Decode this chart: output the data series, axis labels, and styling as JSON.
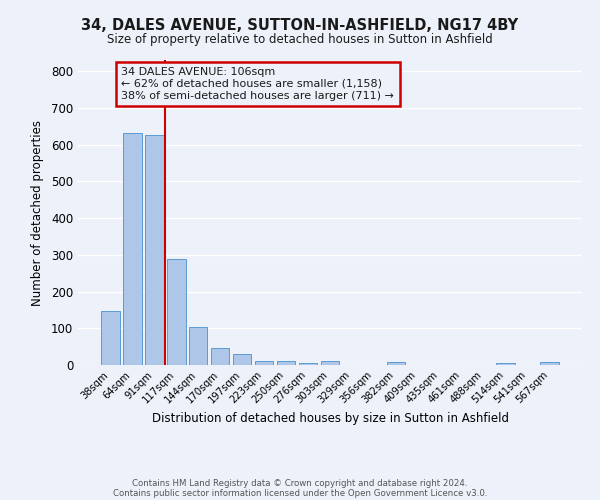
{
  "title": "34, DALES AVENUE, SUTTON-IN-ASHFIELD, NG17 4BY",
  "subtitle": "Size of property relative to detached houses in Sutton in Ashfield",
  "xlabel": "Distribution of detached houses by size in Sutton in Ashfield",
  "ylabel": "Number of detached properties",
  "categories": [
    "38sqm",
    "64sqm",
    "91sqm",
    "117sqm",
    "144sqm",
    "170sqm",
    "197sqm",
    "223sqm",
    "250sqm",
    "276sqm",
    "303sqm",
    "329sqm",
    "356sqm",
    "382sqm",
    "409sqm",
    "435sqm",
    "461sqm",
    "488sqm",
    "514sqm",
    "541sqm",
    "567sqm"
  ],
  "values": [
    148,
    632,
    627,
    289,
    103,
    47,
    30,
    11,
    10,
    6,
    10,
    0,
    0,
    8,
    0,
    0,
    0,
    0,
    5,
    0,
    8
  ],
  "bar_color": "#aec6e8",
  "bar_edge_color": "#5b9bd5",
  "annotation_title": "34 DALES AVENUE: 106sqm",
  "annotation_line1": "← 62% of detached houses are smaller (1,158)",
  "annotation_line2": "38% of semi-detached houses are larger (711) →",
  "annotation_box_color": "#cc0000",
  "annotation_text_color": "#1a1a1a",
  "ylim": [
    0,
    830
  ],
  "yticks": [
    0,
    100,
    200,
    300,
    400,
    500,
    600,
    700,
    800
  ],
  "background_color": "#edf2fa",
  "grid_color": "#ffffff",
  "footer_line1": "Contains HM Land Registry data © Crown copyright and database right 2024.",
  "footer_line2": "Contains public sector information licensed under the Open Government Licence v3.0."
}
